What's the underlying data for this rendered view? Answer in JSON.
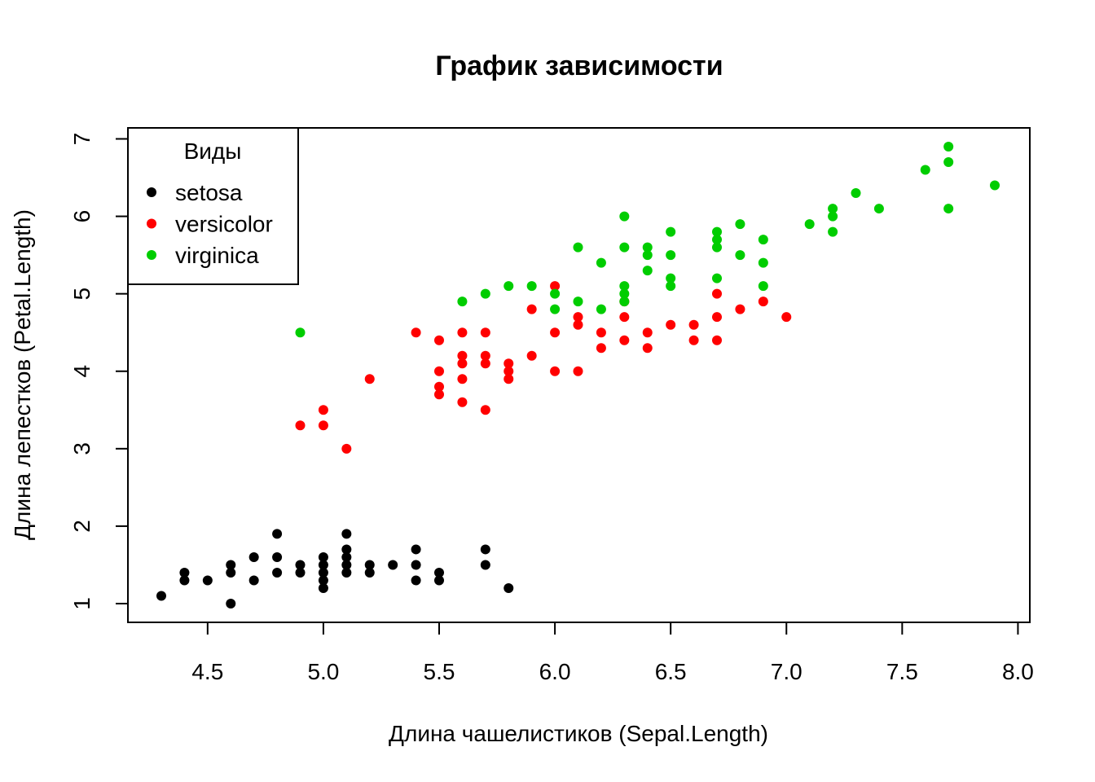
{
  "chart_data": {
    "type": "scatter",
    "title": "График зависимости",
    "xlabel": "Длина чашелистиков (Sepal.Length)",
    "ylabel": "Длина лепестков (Petal.Length)",
    "xlim": [
      4.3,
      7.9
    ],
    "ylim": [
      1,
      6.9
    ],
    "xticks": [
      "4.5",
      "5.0",
      "5.5",
      "6.0",
      "6.5",
      "7.0",
      "7.5",
      "8.0"
    ],
    "yticks": [
      "1",
      "2",
      "3",
      "4",
      "5",
      "6",
      "7"
    ],
    "grid": false,
    "legend": {
      "title": "Виды",
      "position": "top-left",
      "entries": [
        "setosa",
        "versicolor",
        "virginica"
      ]
    },
    "series": [
      {
        "name": "setosa",
        "color": "#000000",
        "points": [
          [
            4.3,
            1.1
          ],
          [
            4.4,
            1.4
          ],
          [
            4.4,
            1.3
          ],
          [
            4.5,
            1.3
          ],
          [
            4.6,
            1.5
          ],
          [
            4.6,
            1.4
          ],
          [
            4.6,
            1.0
          ],
          [
            4.7,
            1.6
          ],
          [
            4.7,
            1.3
          ],
          [
            4.8,
            1.9
          ],
          [
            4.8,
            1.6
          ],
          [
            4.8,
            1.4
          ],
          [
            4.9,
            1.5
          ],
          [
            4.9,
            1.4
          ],
          [
            5.0,
            1.6
          ],
          [
            5.0,
            1.5
          ],
          [
            5.0,
            1.4
          ],
          [
            5.0,
            1.3
          ],
          [
            5.0,
            1.2
          ],
          [
            5.1,
            1.9
          ],
          [
            5.1,
            1.7
          ],
          [
            5.1,
            1.6
          ],
          [
            5.1,
            1.5
          ],
          [
            5.1,
            1.4
          ],
          [
            5.2,
            1.5
          ],
          [
            5.2,
            1.4
          ],
          [
            5.3,
            1.5
          ],
          [
            5.4,
            1.7
          ],
          [
            5.4,
            1.5
          ],
          [
            5.4,
            1.3
          ],
          [
            5.5,
            1.4
          ],
          [
            5.5,
            1.3
          ],
          [
            5.7,
            1.7
          ],
          [
            5.7,
            1.5
          ],
          [
            5.8,
            1.2
          ]
        ]
      },
      {
        "name": "versicolor",
        "color": "#ff0000",
        "points": [
          [
            4.9,
            3.3
          ],
          [
            5.0,
            3.5
          ],
          [
            5.0,
            3.3
          ],
          [
            5.1,
            3.0
          ],
          [
            5.2,
            3.9
          ],
          [
            5.4,
            4.5
          ],
          [
            5.5,
            4.4
          ],
          [
            5.5,
            4.0
          ],
          [
            5.5,
            3.8
          ],
          [
            5.5,
            3.7
          ],
          [
            5.6,
            4.5
          ],
          [
            5.6,
            4.2
          ],
          [
            5.6,
            4.1
          ],
          [
            5.6,
            3.9
          ],
          [
            5.6,
            3.6
          ],
          [
            5.7,
            4.5
          ],
          [
            5.7,
            4.2
          ],
          [
            5.7,
            4.1
          ],
          [
            5.7,
            3.5
          ],
          [
            5.8,
            4.1
          ],
          [
            5.8,
            4.0
          ],
          [
            5.8,
            3.9
          ],
          [
            5.9,
            4.8
          ],
          [
            5.9,
            4.2
          ],
          [
            6.0,
            5.1
          ],
          [
            6.0,
            4.5
          ],
          [
            6.0,
            4.0
          ],
          [
            6.1,
            4.7
          ],
          [
            6.1,
            4.6
          ],
          [
            6.1,
            4.0
          ],
          [
            6.2,
            4.5
          ],
          [
            6.2,
            4.3
          ],
          [
            6.3,
            4.9
          ],
          [
            6.3,
            4.7
          ],
          [
            6.3,
            4.4
          ],
          [
            6.4,
            4.5
          ],
          [
            6.4,
            4.3
          ],
          [
            6.5,
            4.6
          ],
          [
            6.6,
            4.6
          ],
          [
            6.6,
            4.4
          ],
          [
            6.7,
            5.0
          ],
          [
            6.7,
            4.7
          ],
          [
            6.7,
            4.4
          ],
          [
            6.8,
            4.8
          ],
          [
            6.9,
            4.9
          ],
          [
            7.0,
            4.7
          ]
        ]
      },
      {
        "name": "virginica",
        "color": "#00cd00",
        "points": [
          [
            4.9,
            4.5
          ],
          [
            5.6,
            4.9
          ],
          [
            5.7,
            5.0
          ],
          [
            5.8,
            5.1
          ],
          [
            5.9,
            5.1
          ],
          [
            6.0,
            5.0
          ],
          [
            6.0,
            4.8
          ],
          [
            6.1,
            5.6
          ],
          [
            6.1,
            4.9
          ],
          [
            6.2,
            5.4
          ],
          [
            6.2,
            4.8
          ],
          [
            6.3,
            6.0
          ],
          [
            6.3,
            5.6
          ],
          [
            6.3,
            5.1
          ],
          [
            6.3,
            5.0
          ],
          [
            6.3,
            4.9
          ],
          [
            6.4,
            5.6
          ],
          [
            6.4,
            5.5
          ],
          [
            6.4,
            5.3
          ],
          [
            6.5,
            5.8
          ],
          [
            6.5,
            5.5
          ],
          [
            6.5,
            5.2
          ],
          [
            6.5,
            5.1
          ],
          [
            6.7,
            5.8
          ],
          [
            6.7,
            5.7
          ],
          [
            6.7,
            5.6
          ],
          [
            6.7,
            5.2
          ],
          [
            6.8,
            5.9
          ],
          [
            6.8,
            5.5
          ],
          [
            6.9,
            5.7
          ],
          [
            6.9,
            5.4
          ],
          [
            6.9,
            5.1
          ],
          [
            7.1,
            5.9
          ],
          [
            7.2,
            6.1
          ],
          [
            7.2,
            6.0
          ],
          [
            7.2,
            5.8
          ],
          [
            7.3,
            6.3
          ],
          [
            7.4,
            6.1
          ],
          [
            7.6,
            6.6
          ],
          [
            7.7,
            6.9
          ],
          [
            7.7,
            6.7
          ],
          [
            7.7,
            6.1
          ],
          [
            7.9,
            6.4
          ]
        ]
      }
    ]
  }
}
